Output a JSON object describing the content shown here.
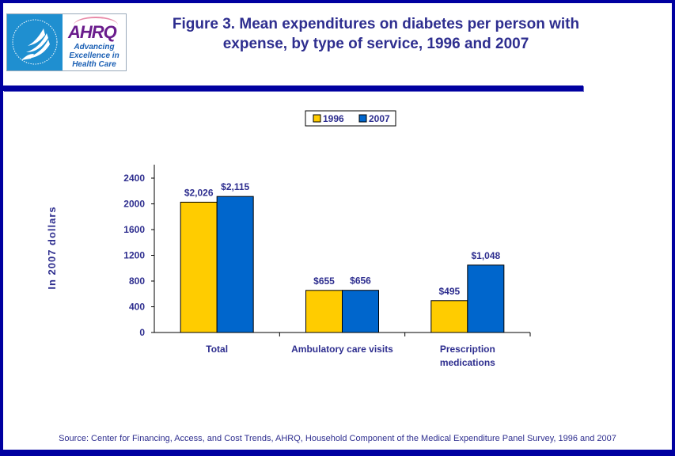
{
  "header": {
    "title_line1": "Figure 3. Mean expenditures on diabetes per person with",
    "title_line2": "expense, by type of service, 1996 and 2007",
    "logo": {
      "left_icon": "hhs-eagle-icon",
      "left_ring_text": "DEPARTMENT OF HEALTH & HUMAN SERVICES • USA",
      "brand": "AHRQ",
      "tagline": [
        "Advancing",
        "Excellence in",
        "Health Care"
      ]
    }
  },
  "colors": {
    "frame": "#0000a0",
    "text": "#2e2e8f",
    "series_1996": "#ffcc00",
    "series_2007": "#0066cc"
  },
  "chart_data": {
    "type": "bar",
    "title": "Figure 3. Mean expenditures on diabetes per person with expense, by type of service, 1996 and 2007",
    "categories": [
      "Total",
      "Ambulatory care visits",
      "Prescription medications"
    ],
    "category_lines": [
      [
        "Total"
      ],
      [
        "Ambulatory care visits"
      ],
      [
        "Prescription",
        "medications"
      ]
    ],
    "series": [
      {
        "name": "1996",
        "values": [
          2026,
          655,
          495
        ],
        "labels": [
          "$2,026",
          "$655",
          "$495"
        ],
        "color": "#ffcc00"
      },
      {
        "name": "2007",
        "values": [
          2115,
          656,
          1048
        ],
        "labels": [
          "$2,115",
          "$656",
          "$1,048"
        ],
        "color": "#0066cc"
      }
    ],
    "xlabel": "",
    "ylabel": "In 2007 dollars",
    "ylim": [
      0,
      2400
    ],
    "yticks": [
      0,
      400,
      800,
      1200,
      1600,
      2000,
      2400
    ],
    "grid": false,
    "legend": {
      "position": "top-center",
      "entries": [
        "1996",
        "2007"
      ]
    }
  },
  "footer": {
    "source": "Source: Center for Financing, Access, and Cost Trends, AHRQ, Household Component of the Medical Expenditure Panel Survey, 1996 and 2007"
  }
}
